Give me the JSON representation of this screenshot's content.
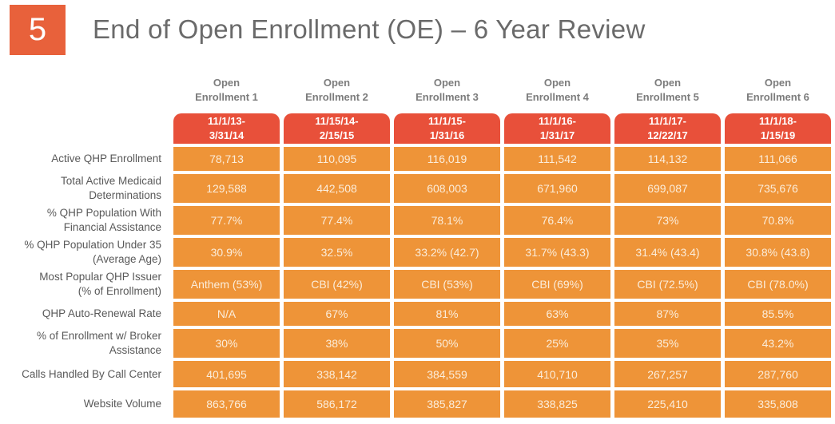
{
  "header": {
    "slide_number": "5",
    "title": "End of Open Enrollment (OE) – 6 Year Review"
  },
  "colors": {
    "badge_orange": "#E8613B",
    "date_cell_red": "#E8503A",
    "data_cell_orange": "#EE9438",
    "title_gray": "#6A6A6A",
    "label_gray": "#595959",
    "column_header_gray": "#7C7C7C",
    "cell_text_cream": "#FBEDDB"
  },
  "table": {
    "columns": [
      {
        "label": "Open\nEnrollment 1",
        "dates": "11/1/13-\n3/31/14"
      },
      {
        "label": "Open\nEnrollment 2",
        "dates": "11/15/14-\n2/15/15"
      },
      {
        "label": "Open\nEnrollment 3",
        "dates": "11/1/15-\n1/31/16"
      },
      {
        "label": "Open\nEnrollment 4",
        "dates": "11/1/16-\n1/31/17"
      },
      {
        "label": "Open\nEnrollment 5",
        "dates": "11/1/17-\n12/22/17"
      },
      {
        "label": "Open\nEnrollment 6",
        "dates": "11/1/18-\n1/15/19"
      }
    ],
    "rows": [
      {
        "label": "Active QHP Enrollment",
        "values": [
          "78,713",
          "110,095",
          "116,019",
          "111,542",
          "114,132",
          "111,066"
        ]
      },
      {
        "label": "Total Active Medicaid\nDeterminations",
        "values": [
          "129,588",
          "442,508",
          "608,003",
          "671,960",
          "699,087",
          "735,676"
        ]
      },
      {
        "label": "% QHP Population With\nFinancial Assistance",
        "values": [
          "77.7%",
          "77.4%",
          "78.1%",
          "76.4%",
          "73%",
          "70.8%"
        ]
      },
      {
        "label": "% QHP Population Under 35\n(Average Age)",
        "values": [
          "30.9%",
          "32.5%",
          "33.2% (42.7)",
          "31.7% (43.3)",
          "31.4% (43.4)",
          "30.8% (43.8)"
        ]
      },
      {
        "label": "Most Popular QHP Issuer\n(% of Enrollment)",
        "values": [
          "Anthem (53%)",
          "CBI (42%)",
          "CBI (53%)",
          "CBI (69%)",
          "CBI (72.5%)",
          "CBI (78.0%)"
        ]
      },
      {
        "label": "QHP Auto-Renewal Rate",
        "values": [
          "N/A",
          "67%",
          "81%",
          "63%",
          "87%",
          "85.5%"
        ]
      },
      {
        "label": "% of Enrollment w/ Broker\nAssistance",
        "values": [
          "30%",
          "38%",
          "50%",
          "25%",
          "35%",
          "43.2%"
        ]
      },
      {
        "label": "Calls Handled By Call Center",
        "values": [
          "401,695",
          "338,142",
          "384,559",
          "410,710",
          "267,257",
          "287,760"
        ]
      },
      {
        "label": "Website Volume",
        "values": [
          "863,766",
          "586,172",
          "385,827",
          "338,825",
          "225,410",
          "335,808"
        ]
      }
    ]
  }
}
